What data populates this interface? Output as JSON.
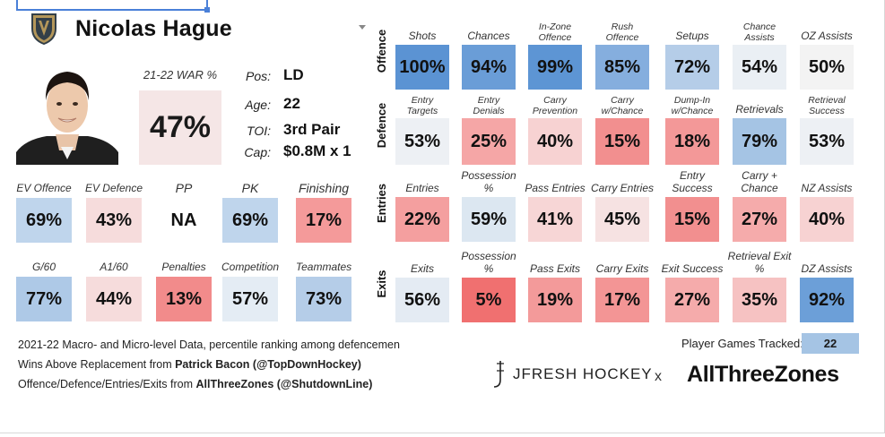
{
  "player": {
    "name": "Nicolas Hague",
    "war_label": "21-22 WAR %",
    "war_value": "47%",
    "war_color": "#f5e6e6",
    "info": [
      {
        "label": "Pos:",
        "value": "LD"
      },
      {
        "label": "Age:",
        "value": "22"
      },
      {
        "label": "TOI:",
        "value": "3rd Pair"
      },
      {
        "label": "Cap:",
        "value": "$0.8M x 1"
      }
    ]
  },
  "chart_data": {
    "type": "table",
    "left_rows": [
      {
        "cells": [
          {
            "label": "EV Offence",
            "value": "69%",
            "color": "#bfd5ec"
          },
          {
            "label": "EV Defence",
            "value": "43%",
            "color": "#f6dcdc"
          },
          {
            "label": "PP",
            "value": "NA",
            "color": "#ffffff"
          },
          {
            "label": "PK",
            "value": "69%",
            "color": "#bfd5ec"
          },
          {
            "label": "Finishing",
            "value": "17%",
            "color": "#f49a9a"
          }
        ]
      },
      {
        "cells": [
          {
            "label": "G/60",
            "value": "77%",
            "color": "#aec9e7"
          },
          {
            "label": "A1/60",
            "value": "44%",
            "color": "#f6dcdc"
          },
          {
            "label": "Penalties",
            "value": "13%",
            "color": "#f28b8b"
          },
          {
            "label": "Competition",
            "value": "57%",
            "color": "#e4ecf4"
          },
          {
            "label": "Teammates",
            "value": "73%",
            "color": "#b5cde8"
          }
        ]
      }
    ],
    "sections": [
      {
        "name": "Offence",
        "cells": [
          {
            "label": "Shots",
            "value": "100%",
            "color": "#5b93d3"
          },
          {
            "label": "Chances",
            "value": "94%",
            "color": "#6a9dd7"
          },
          {
            "label": "In-Zone\nOffence",
            "value": "99%",
            "color": "#5d95d4"
          },
          {
            "label": "Rush\nOffence",
            "value": "85%",
            "color": "#85aede"
          },
          {
            "label": "Setups",
            "value": "72%",
            "color": "#b5cde8"
          },
          {
            "label": "Chance\nAssists",
            "value": "54%",
            "color": "#eaeff4"
          },
          {
            "label": "OZ Assists",
            "value": "50%",
            "color": "#f3f3f3"
          }
        ]
      },
      {
        "name": "Defence",
        "cells": [
          {
            "label": "Entry\nTargets",
            "value": "53%",
            "color": "#edf0f4"
          },
          {
            "label": "Entry\nDenials",
            "value": "25%",
            "color": "#f5a6a6"
          },
          {
            "label": "Carry\nPrevention",
            "value": "40%",
            "color": "#f7d2d2"
          },
          {
            "label": "Carry\nw/Chance",
            "value": "15%",
            "color": "#f28f8f"
          },
          {
            "label": "Dump-In\nw/Chance",
            "value": "18%",
            "color": "#f39898"
          },
          {
            "label": "Retrievals",
            "value": "79%",
            "color": "#a5c4e4"
          },
          {
            "label": "Retrieval\nSuccess",
            "value": "53%",
            "color": "#edf0f4"
          }
        ]
      },
      {
        "name": "Entries",
        "cells": [
          {
            "label": "Entries",
            "value": "22%",
            "color": "#f49f9f"
          },
          {
            "label": "Possession %",
            "value": "59%",
            "color": "#dce7f1"
          },
          {
            "label": "Pass Entries",
            "value": "41%",
            "color": "#f7d6d6"
          },
          {
            "label": "Carry Entries",
            "value": "45%",
            "color": "#f6e2e2"
          },
          {
            "label": "Entry Success",
            "value": "15%",
            "color": "#f28f8f"
          },
          {
            "label": "Carry + Chance",
            "value": "27%",
            "color": "#f5abab"
          },
          {
            "label": "NZ Assists",
            "value": "40%",
            "color": "#f7d2d2"
          }
        ]
      },
      {
        "name": "Exits",
        "cells": [
          {
            "label": "Exits",
            "value": "56%",
            "color": "#e4ebf3"
          },
          {
            "label": "Possession %",
            "value": "5%",
            "color": "#f07070"
          },
          {
            "label": "Pass Exits",
            "value": "19%",
            "color": "#f39a9a"
          },
          {
            "label": "Carry Exits",
            "value": "17%",
            "color": "#f39595"
          },
          {
            "label": "Exit Success",
            "value": "27%",
            "color": "#f5abab"
          },
          {
            "label": "Retrieval Exit %",
            "value": "35%",
            "color": "#f6c2c2"
          },
          {
            "label": "DZ Assists",
            "value": "92%",
            "color": "#6c9fd8"
          }
        ]
      }
    ]
  },
  "footer": {
    "line1": "2021-22 Macro- and Micro-level Data, percentile ranking among defencemen",
    "line2_prefix": "Wins Above Replacement from ",
    "line2_bold": "Patrick Bacon (@TopDownHockey)",
    "line3_prefix": "Offence/Defence/Entries/Exits from ",
    "line3_bold": "AllThreeZones (@ShutdownLine)",
    "games_label": "Player Games Tracked:",
    "games_value": "22",
    "brand_jfresh": "JFRESH HOCKEY",
    "brand_x": "x",
    "brand_atz": "AllThreeZones"
  }
}
